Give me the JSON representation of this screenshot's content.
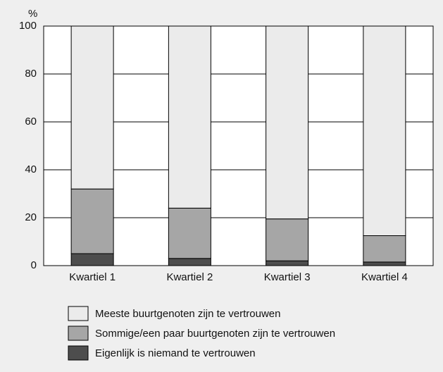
{
  "chart_data": {
    "type": "stacked_bar",
    "y_label": "%",
    "categories": [
      "Kwartiel 1",
      "Kwartiel 2",
      "Kwartiel 3",
      "Kwartiel 4"
    ],
    "series": [
      {
        "name": "Eigenlijk is niemand te vertrouwen",
        "color": "#4d4d4d",
        "values": [
          5,
          3,
          2,
          1.5
        ]
      },
      {
        "name": "Sommige/een paar buurtgenoten zijn te vertrouwen",
        "color": "#a6a6a6",
        "values": [
          27,
          21,
          17.5,
          11
        ]
      },
      {
        "name": "Meeste buurtgenoten zijn te vertrouwen",
        "color": "#ebebeb",
        "values": [
          68,
          76,
          80.5,
          87.5
        ]
      }
    ],
    "ylim": [
      0,
      100
    ],
    "yticks": [
      0,
      20,
      40,
      60,
      80,
      100
    ],
    "grid": true,
    "legend": "bottom"
  }
}
